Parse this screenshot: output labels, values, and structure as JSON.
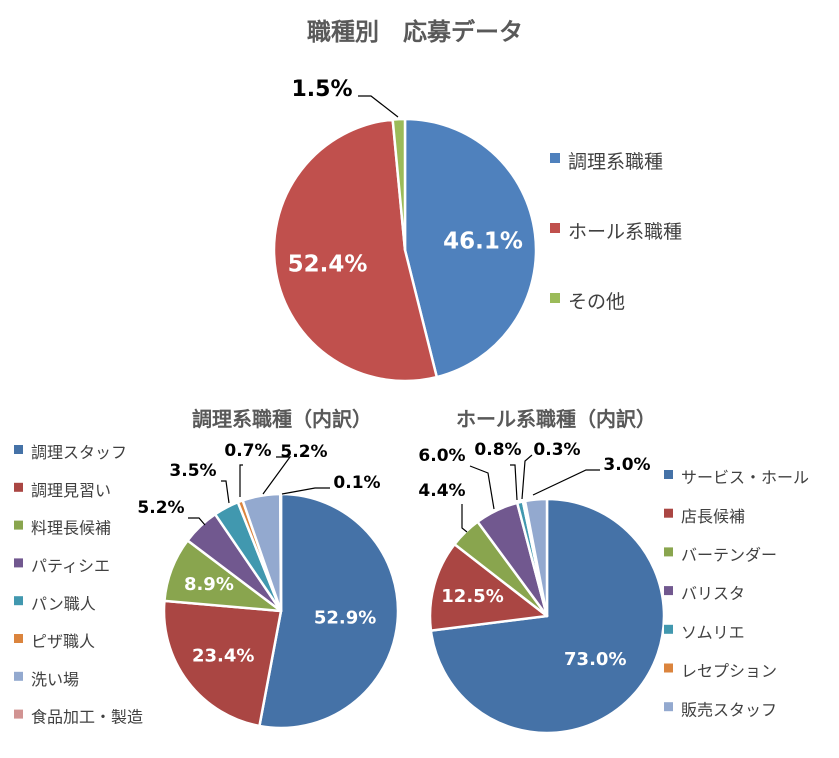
{
  "colors": {
    "title": "#595959",
    "legend_text": "#404040",
    "leader": "#000000"
  },
  "chart_data": [
    {
      "type": "pie",
      "title": "職種別　応募データ",
      "legend_position": "right",
      "categories": [
        "調理系職種",
        "ホール系職種",
        "その他"
      ],
      "values": [
        46.1,
        52.4,
        1.5
      ],
      "labels": [
        "46.1%",
        "52.4%",
        "1.5%"
      ],
      "colors": [
        "#4F81BD",
        "#C0504D",
        "#9BBB59"
      ]
    },
    {
      "type": "pie",
      "title": "調理系職種（内訳）",
      "legend_position": "left",
      "categories": [
        "調理スタッフ",
        "調理見習い",
        "料理長候補",
        "パティシエ",
        "パン職人",
        "ピザ職人",
        "洗い場",
        "食品加工・製造"
      ],
      "values": [
        52.9,
        23.4,
        8.9,
        5.2,
        3.5,
        0.7,
        5.2,
        0.1
      ],
      "labels": [
        "52.9%",
        "23.4%",
        "8.9%",
        "5.2%",
        "3.5%",
        "0.7%",
        "5.2%",
        "0.1%"
      ],
      "colors": [
        "#4572A7",
        "#AA4643",
        "#89A54E",
        "#71588F",
        "#4198AF",
        "#DB843D",
        "#93A9CF",
        "#D19392"
      ]
    },
    {
      "type": "pie",
      "title": "ホール系職種（内訳）",
      "legend_position": "right",
      "categories": [
        "サービス・ホール",
        "店長候補",
        "バーテンダー",
        "バリスタ",
        "ソムリエ",
        "レセプション",
        "販売スタッフ"
      ],
      "values": [
        73.0,
        12.5,
        4.4,
        6.0,
        0.8,
        0.3,
        3.0
      ],
      "labels": [
        "73.0%",
        "12.5%",
        "4.4%",
        "6.0%",
        "0.8%",
        "0.3%",
        "3.0%"
      ],
      "colors": [
        "#4572A7",
        "#AA4643",
        "#89A54E",
        "#71588F",
        "#4198AF",
        "#DB843D",
        "#93A9CF"
      ]
    }
  ]
}
